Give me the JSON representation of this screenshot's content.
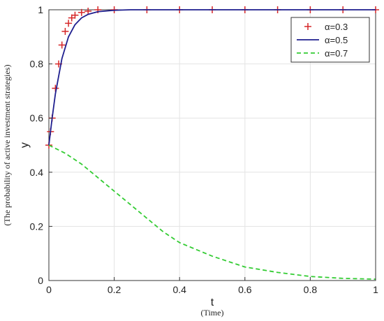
{
  "chart_data": {
    "type": "line",
    "xlabel": "t",
    "xlabel_sub": "(Time)",
    "ylabel": "y",
    "ylabel_sub": "(The probability of active investment strategies)",
    "xlim": [
      0,
      1
    ],
    "ylim": [
      0,
      1
    ],
    "x_ticks": [
      "0",
      "0.2",
      "0.4",
      "0.6",
      "0.8",
      "1"
    ],
    "y_ticks": [
      "0",
      "0.2",
      "0.4",
      "0.6",
      "0.8",
      "1"
    ],
    "grid": true,
    "legend_position": "top-right",
    "series": [
      {
        "name": "α=0.3",
        "style": "plus-markers",
        "color": "#d62728",
        "x": [
          0,
          0.005,
          0.01,
          0.02,
          0.03,
          0.04,
          0.05,
          0.06,
          0.07,
          0.08,
          0.1,
          0.12,
          0.15,
          0.2,
          0.3,
          0.4,
          0.5,
          0.6,
          0.7,
          0.8,
          0.9,
          1.0
        ],
        "y": [
          0.5,
          0.55,
          0.6,
          0.71,
          0.8,
          0.87,
          0.92,
          0.95,
          0.97,
          0.98,
          0.99,
          0.995,
          1,
          1,
          1,
          1,
          1,
          1,
          1,
          1,
          1,
          1
        ]
      },
      {
        "name": "α=0.5",
        "style": "solid",
        "color": "#1f1f8f",
        "x": [
          0,
          0.01,
          0.02,
          0.04,
          0.06,
          0.08,
          0.1,
          0.12,
          0.15,
          0.2,
          0.25,
          0.3,
          0.4,
          0.5,
          0.6,
          0.8,
          1.0
        ],
        "y": [
          0.5,
          0.6,
          0.69,
          0.82,
          0.9,
          0.945,
          0.97,
          0.983,
          0.993,
          0.998,
          1,
          1,
          1,
          1,
          1,
          1,
          1
        ]
      },
      {
        "name": "α=0.7",
        "style": "dashed",
        "color": "#33cc33",
        "x": [
          0,
          0.05,
          0.1,
          0.15,
          0.2,
          0.25,
          0.3,
          0.35,
          0.4,
          0.5,
          0.6,
          0.7,
          0.8,
          0.9,
          1.0
        ],
        "y": [
          0.5,
          0.47,
          0.43,
          0.38,
          0.33,
          0.28,
          0.23,
          0.18,
          0.14,
          0.09,
          0.05,
          0.03,
          0.015,
          0.008,
          0.005
        ]
      }
    ]
  }
}
